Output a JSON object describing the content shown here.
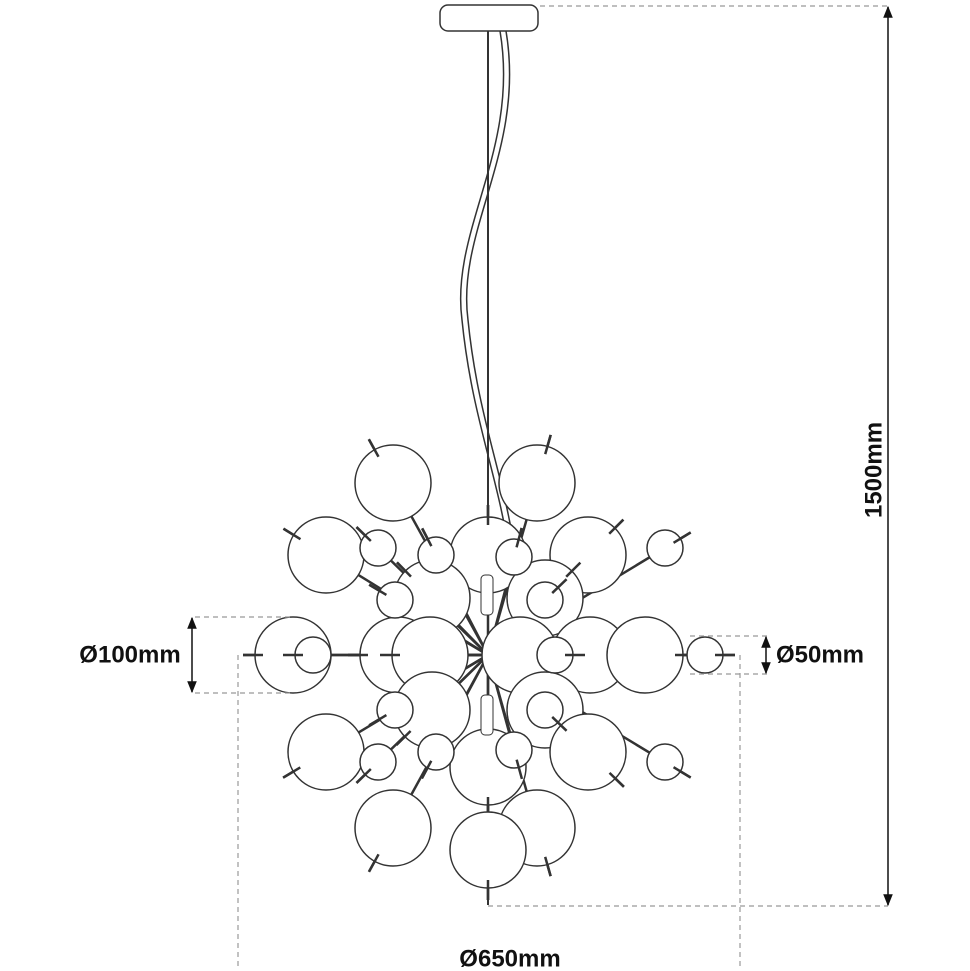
{
  "dimensions": {
    "large_globe": "Ø100mm",
    "small_globe": "Ø50mm",
    "height": "1500mm",
    "width": "Ø650mm"
  }
}
